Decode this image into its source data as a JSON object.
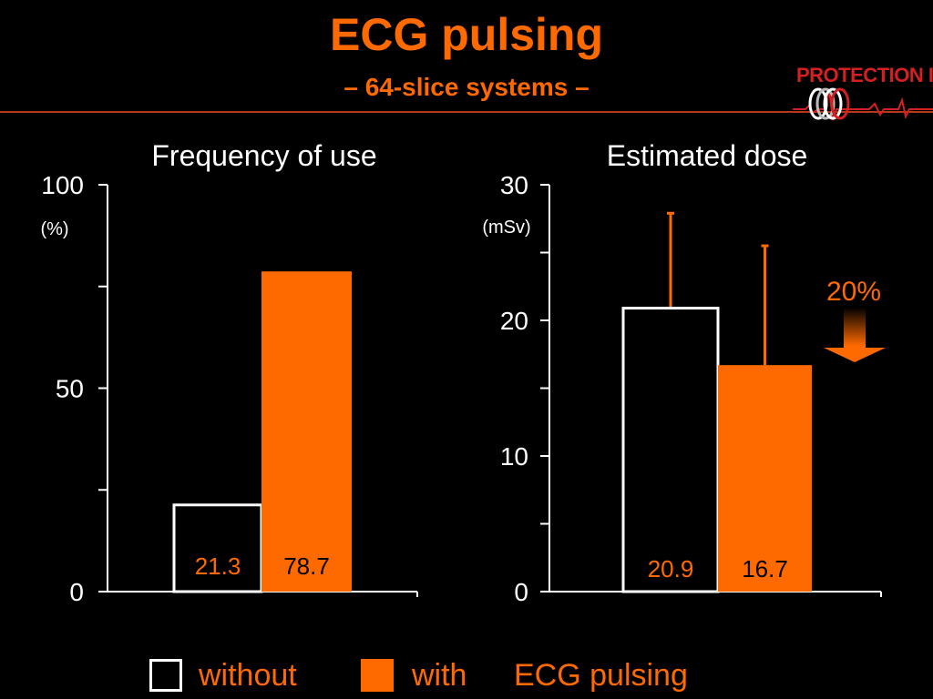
{
  "slide": {
    "title": "ECG pulsing",
    "subtitle": "– 64-slice systems –",
    "logo_text": "PROTECTION I"
  },
  "colors": {
    "accent": "#ff6a00",
    "background": "#000000",
    "logo_red": "#d42020",
    "axis": "#ffffff"
  },
  "chart_data": [
    {
      "type": "bar",
      "title": "Frequency of use",
      "ylabel": "(%)",
      "ylim": [
        0,
        100
      ],
      "yticks": [
        "0",
        "50",
        "100"
      ],
      "categories": [
        "without",
        "with"
      ],
      "values": [
        21.3,
        78.7
      ],
      "value_labels": [
        "21.3",
        "78.7"
      ],
      "grid": false
    },
    {
      "type": "bar",
      "title": "Estimated dose",
      "ylabel": "(mSv)",
      "ylim": [
        0,
        30
      ],
      "yticks": [
        "0",
        "10",
        "20",
        "30"
      ],
      "categories": [
        "without",
        "with"
      ],
      "values": [
        20.9,
        16.7
      ],
      "value_labels": [
        "20.9",
        "16.7"
      ],
      "error_upper": [
        27.9,
        25.5
      ],
      "annotation": "20%",
      "grid": false
    }
  ],
  "legend": {
    "without_label": "without",
    "with_label": "with",
    "suffix": "ECG pulsing"
  }
}
